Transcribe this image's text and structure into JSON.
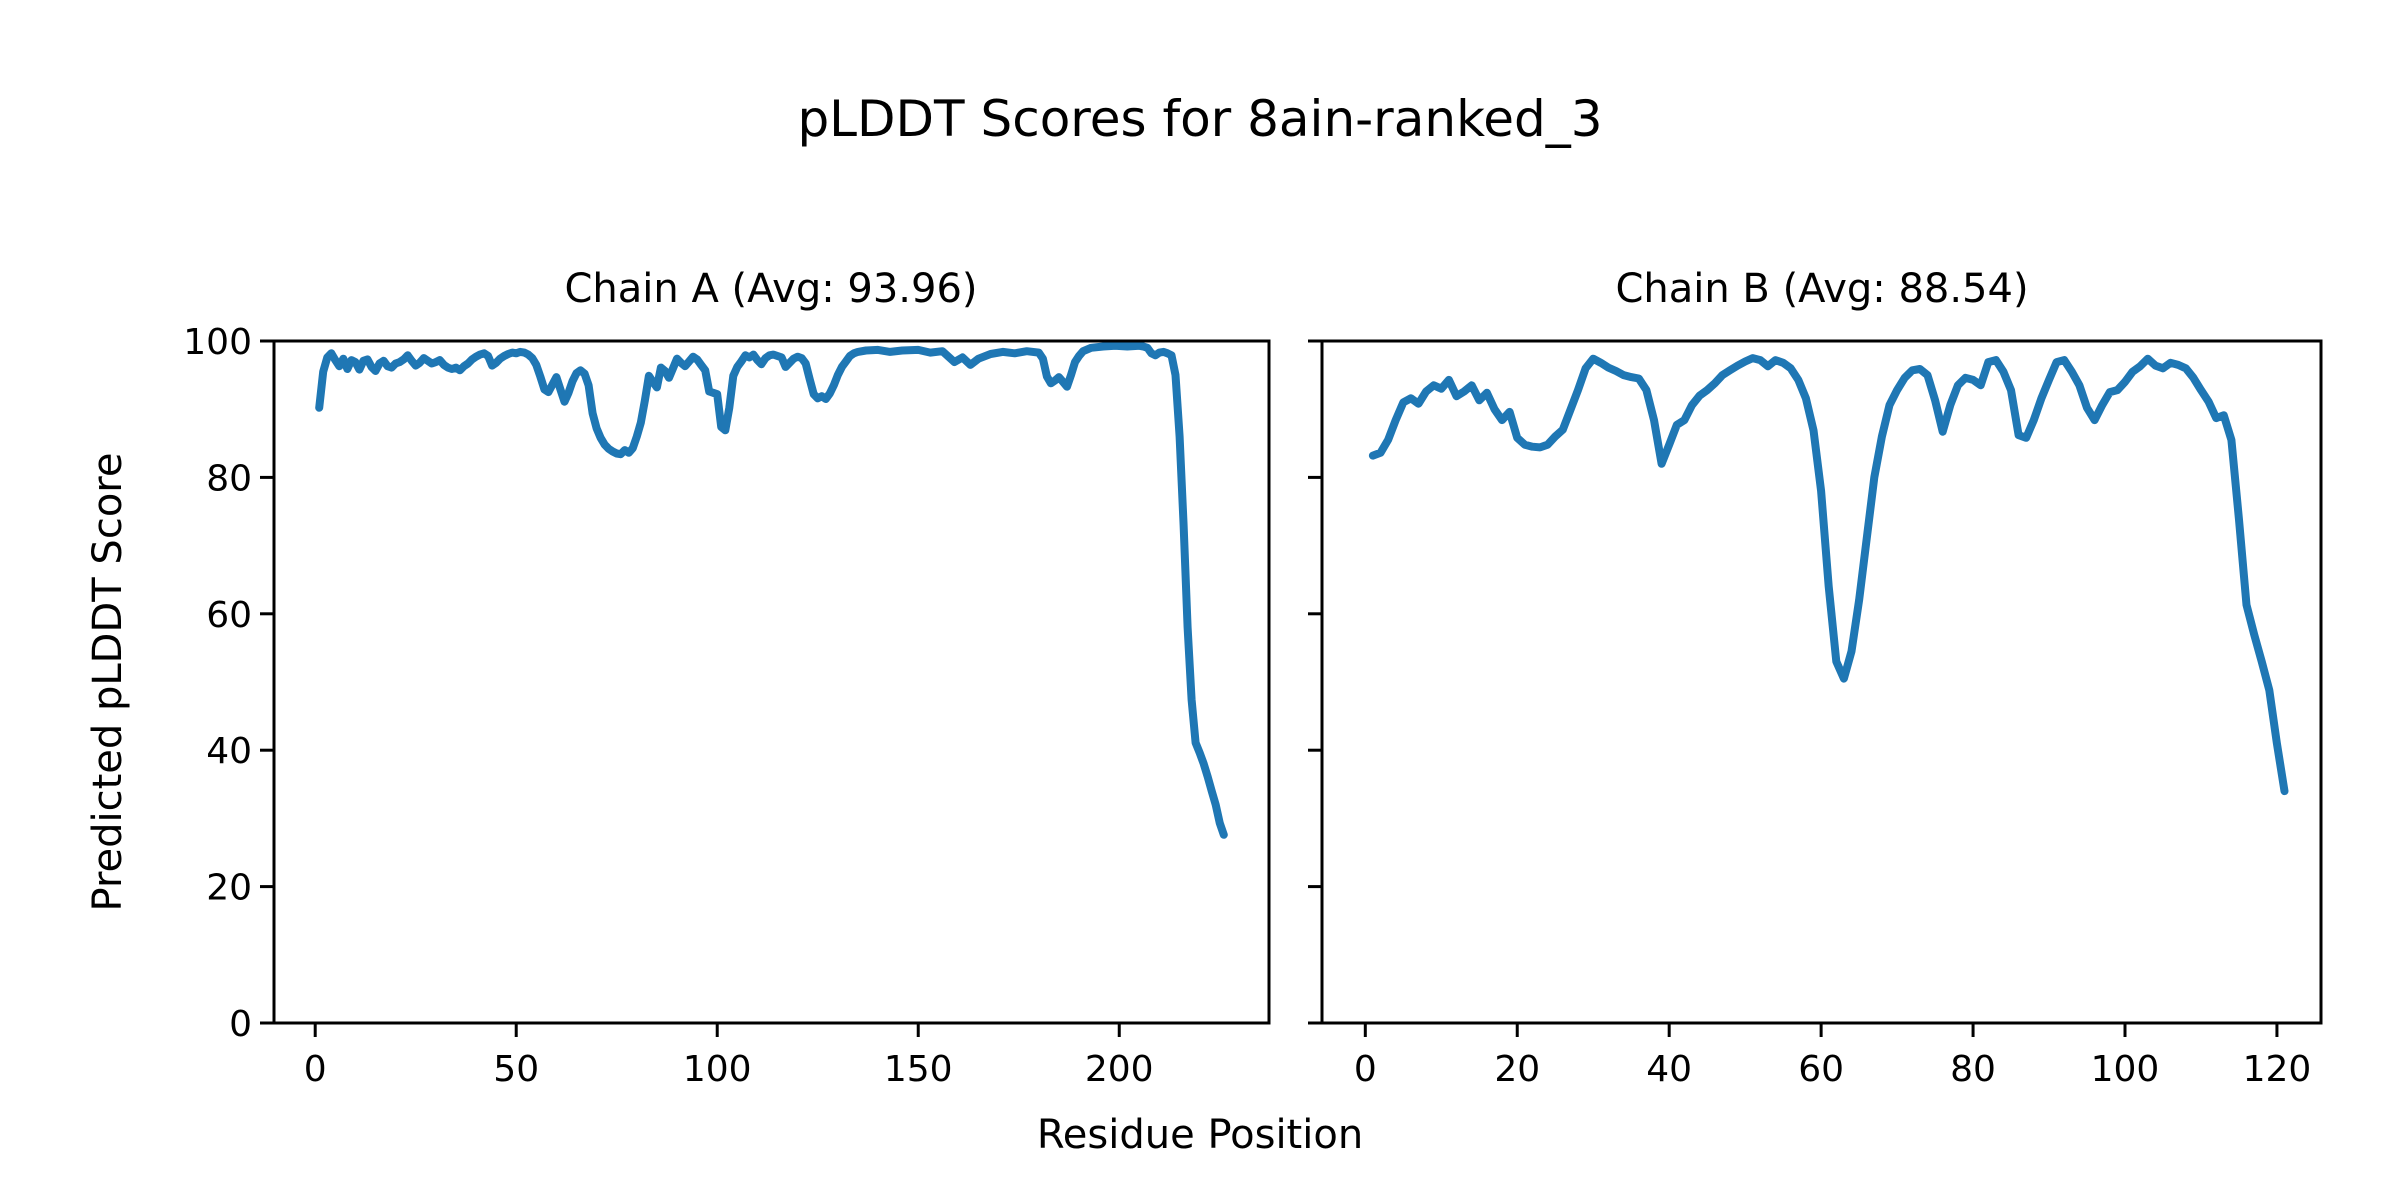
{
  "figure": {
    "suptitle": "pLDDT Scores for 8ain-ranked_3",
    "xlabel": "Residue Position",
    "ylabel": "Predicted pLDDT Score",
    "background_color": "#ffffff",
    "text_color": "#000000"
  },
  "chart_data": [
    {
      "type": "line",
      "title": "Chain A (Avg: 93.96)",
      "chain": "A",
      "avg_plddt": 93.96,
      "line_color": "#1f77b4",
      "xlim": [
        -10.25,
        237.25
      ],
      "ylim": [
        0,
        100
      ],
      "xticks": [
        0,
        50,
        100,
        150,
        200
      ],
      "yticks": [
        0,
        20,
        40,
        60,
        80,
        100
      ],
      "show_ytick_labels": true,
      "grid": false,
      "points": [
        [
          1,
          90.2
        ],
        [
          2,
          95.5
        ],
        [
          3,
          97.6
        ],
        [
          4,
          98.2
        ],
        [
          5,
          97.2
        ],
        [
          6,
          96.3
        ],
        [
          7,
          97.4
        ],
        [
          8,
          95.9
        ],
        [
          9,
          97.2
        ],
        [
          10,
          96.9
        ],
        [
          11,
          95.8
        ],
        [
          12,
          97.1
        ],
        [
          13,
          97.3
        ],
        [
          14,
          96.2
        ],
        [
          15,
          95.6
        ],
        [
          16,
          96.7
        ],
        [
          17,
          97.1
        ],
        [
          18,
          96.3
        ],
        [
          19,
          96.1
        ],
        [
          20,
          96.7
        ],
        [
          21,
          96.9
        ],
        [
          22,
          97.3
        ],
        [
          23,
          97.9
        ],
        [
          24,
          97.1
        ],
        [
          25,
          96.4
        ],
        [
          26,
          96.8
        ],
        [
          27,
          97.5
        ],
        [
          28,
          97.1
        ],
        [
          29,
          96.7
        ],
        [
          30,
          96.9
        ],
        [
          31,
          97.2
        ],
        [
          32,
          96.5
        ],
        [
          33,
          96.1
        ],
        [
          34,
          95.9
        ],
        [
          35,
          96.1
        ],
        [
          36,
          95.7
        ],
        [
          37,
          96.3
        ],
        [
          38,
          96.7
        ],
        [
          39,
          97.3
        ],
        [
          40,
          97.7
        ],
        [
          41,
          98.0
        ],
        [
          42,
          98.2
        ],
        [
          43,
          97.8
        ],
        [
          44,
          96.4
        ],
        [
          45,
          96.8
        ],
        [
          46,
          97.4
        ],
        [
          47,
          97.8
        ],
        [
          48,
          98.1
        ],
        [
          49,
          98.3
        ],
        [
          50,
          98.2
        ],
        [
          51,
          98.4
        ],
        [
          52,
          98.3
        ],
        [
          53,
          98.0
        ],
        [
          54,
          97.5
        ],
        [
          55,
          96.5
        ],
        [
          56,
          94.8
        ],
        [
          57,
          92.9
        ],
        [
          58,
          92.5
        ],
        [
          59,
          93.6
        ],
        [
          60,
          94.7
        ],
        [
          61,
          92.9
        ],
        [
          62,
          91.1
        ],
        [
          63,
          92.4
        ],
        [
          64,
          94.1
        ],
        [
          65,
          95.3
        ],
        [
          66,
          95.7
        ],
        [
          67,
          95.2
        ],
        [
          68,
          93.5
        ],
        [
          69,
          89.4
        ],
        [
          70,
          87.2
        ],
        [
          71,
          85.8
        ],
        [
          72,
          84.8
        ],
        [
          73,
          84.2
        ],
        [
          74,
          83.8
        ],
        [
          75,
          83.5
        ],
        [
          76,
          83.4
        ],
        [
          77,
          84.0
        ],
        [
          78,
          83.6
        ],
        [
          79,
          84.3
        ],
        [
          80,
          86.0
        ],
        [
          81,
          88.0
        ],
        [
          82,
          91.3
        ],
        [
          83,
          94.9
        ],
        [
          84,
          94.0
        ],
        [
          85,
          93.2
        ],
        [
          86,
          96.1
        ],
        [
          87,
          95.6
        ],
        [
          88,
          94.6
        ],
        [
          89,
          96.0
        ],
        [
          90,
          97.4
        ],
        [
          91,
          96.8
        ],
        [
          92,
          96.3
        ],
        [
          93,
          97.0
        ],
        [
          94,
          97.7
        ],
        [
          95,
          97.3
        ],
        [
          96,
          96.5
        ],
        [
          97,
          95.7
        ],
        [
          98,
          92.6
        ],
        [
          99,
          92.4
        ],
        [
          100,
          92.2
        ],
        [
          101,
          87.4
        ],
        [
          102,
          86.9
        ],
        [
          103,
          90.2
        ],
        [
          104,
          94.9
        ],
        [
          105,
          96.2
        ],
        [
          106,
          97.0
        ],
        [
          107,
          97.9
        ],
        [
          108,
          97.6
        ],
        [
          109,
          98.0
        ],
        [
          110,
          97.2
        ],
        [
          111,
          96.6
        ],
        [
          112,
          97.5
        ],
        [
          113,
          97.9
        ],
        [
          114,
          98.0
        ],
        [
          115,
          97.8
        ],
        [
          116,
          97.6
        ],
        [
          117,
          96.2
        ],
        [
          118,
          96.8
        ],
        [
          119,
          97.4
        ],
        [
          120,
          97.7
        ],
        [
          121,
          97.5
        ],
        [
          122,
          96.7
        ],
        [
          123,
          94.4
        ],
        [
          124,
          92.2
        ],
        [
          125,
          91.6
        ],
        [
          126,
          91.9
        ],
        [
          127,
          91.5
        ],
        [
          128,
          92.3
        ],
        [
          129,
          93.5
        ],
        [
          130,
          95.0
        ],
        [
          131,
          96.2
        ],
        [
          132,
          97.0
        ],
        [
          133,
          97.8
        ],
        [
          134,
          98.2
        ],
        [
          135,
          98.4
        ],
        [
          137,
          98.6
        ],
        [
          140,
          98.7
        ],
        [
          143,
          98.4
        ],
        [
          146,
          98.6
        ],
        [
          150,
          98.7
        ],
        [
          153,
          98.3
        ],
        [
          156,
          98.5
        ],
        [
          159,
          96.9
        ],
        [
          161,
          97.6
        ],
        [
          163,
          96.5
        ],
        [
          165,
          97.4
        ],
        [
          168,
          98.1
        ],
        [
          171,
          98.4
        ],
        [
          174,
          98.2
        ],
        [
          177,
          98.5
        ],
        [
          180,
          98.3
        ],
        [
          181,
          97.4
        ],
        [
          182,
          94.8
        ],
        [
          183,
          93.8
        ],
        [
          184,
          94.2
        ],
        [
          185,
          94.7
        ],
        [
          186,
          94.0
        ],
        [
          187,
          93.3
        ],
        [
          188,
          95.0
        ],
        [
          189,
          96.9
        ],
        [
          190,
          97.8
        ],
        [
          191,
          98.5
        ],
        [
          193,
          99.0
        ],
        [
          196,
          99.2
        ],
        [
          199,
          99.3
        ],
        [
          202,
          99.2
        ],
        [
          205,
          99.3
        ],
        [
          206,
          99.2
        ],
        [
          207,
          99.0
        ],
        [
          208,
          98.2
        ],
        [
          209,
          97.9
        ],
        [
          210,
          98.3
        ],
        [
          211,
          98.4
        ],
        [
          212,
          98.2
        ],
        [
          213,
          97.9
        ],
        [
          214,
          95.0
        ],
        [
          215,
          86.0
        ],
        [
          216,
          73.0
        ],
        [
          217,
          58.0
        ],
        [
          218,
          47.4
        ],
        [
          219,
          41.1
        ],
        [
          220,
          39.6
        ],
        [
          221,
          38.0
        ],
        [
          222,
          36.1
        ],
        [
          223,
          34.0
        ],
        [
          224,
          32.0
        ],
        [
          225,
          29.3
        ],
        [
          226,
          27.6
        ]
      ]
    },
    {
      "type": "line",
      "title": "Chain B (Avg: 88.54)",
      "chain": "B",
      "avg_plddt": 88.54,
      "line_color": "#1f77b4",
      "xlim": [
        -5.7,
        125.8
      ],
      "ylim": [
        0,
        100
      ],
      "xticks": [
        0,
        20,
        40,
        60,
        80,
        100,
        120
      ],
      "yticks": [
        0,
        20,
        40,
        60,
        80,
        100
      ],
      "show_ytick_labels": false,
      "grid": false,
      "points": [
        [
          1,
          83.2
        ],
        [
          2,
          83.6
        ],
        [
          3,
          85.5
        ],
        [
          4,
          88.4
        ],
        [
          5,
          91.0
        ],
        [
          6,
          91.6
        ],
        [
          7,
          90.8
        ],
        [
          8,
          92.6
        ],
        [
          9,
          93.5
        ],
        [
          10,
          93.0
        ],
        [
          11,
          94.3
        ],
        [
          12,
          91.9
        ],
        [
          13,
          92.6
        ],
        [
          14,
          93.5
        ],
        [
          15,
          91.3
        ],
        [
          16,
          92.4
        ],
        [
          17,
          90.0
        ],
        [
          18,
          88.4
        ],
        [
          19,
          89.6
        ],
        [
          20,
          85.8
        ],
        [
          21,
          84.8
        ],
        [
          22,
          84.5
        ],
        [
          23,
          84.4
        ],
        [
          24,
          84.8
        ],
        [
          25,
          86.0
        ],
        [
          26,
          87.0
        ],
        [
          27,
          89.9
        ],
        [
          28,
          92.8
        ],
        [
          29,
          96.0
        ],
        [
          30,
          97.4
        ],
        [
          31,
          96.8
        ],
        [
          32,
          96.1
        ],
        [
          33,
          95.6
        ],
        [
          34,
          95.0
        ],
        [
          35,
          94.7
        ],
        [
          36,
          94.5
        ],
        [
          37,
          92.8
        ],
        [
          38,
          88.4
        ],
        [
          39,
          82.0
        ],
        [
          40,
          84.8
        ],
        [
          41,
          87.7
        ],
        [
          42,
          88.4
        ],
        [
          43,
          90.6
        ],
        [
          44,
          92.0
        ],
        [
          45,
          92.8
        ],
        [
          46,
          93.8
        ],
        [
          47,
          95.0
        ],
        [
          48,
          95.7
        ],
        [
          49,
          96.4
        ],
        [
          50,
          97.0
        ],
        [
          51,
          97.5
        ],
        [
          52,
          97.2
        ],
        [
          53,
          96.3
        ],
        [
          54,
          97.2
        ],
        [
          55,
          96.8
        ],
        [
          56,
          96.0
        ],
        [
          57,
          94.3
        ],
        [
          58,
          91.6
        ],
        [
          59,
          86.9
        ],
        [
          60,
          78.0
        ],
        [
          61,
          64.0
        ],
        [
          62,
          53.0
        ],
        [
          63,
          50.5
        ],
        [
          64,
          54.5
        ],
        [
          65,
          62.0
        ],
        [
          66,
          71.0
        ],
        [
          67,
          80.0
        ],
        [
          68,
          86.0
        ],
        [
          69,
          90.6
        ],
        [
          70,
          92.8
        ],
        [
          71,
          94.6
        ],
        [
          72,
          95.7
        ],
        [
          73,
          95.9
        ],
        [
          74,
          95.0
        ],
        [
          75,
          91.3
        ],
        [
          76,
          86.7
        ],
        [
          77,
          90.6
        ],
        [
          78,
          93.5
        ],
        [
          79,
          94.6
        ],
        [
          80,
          94.3
        ],
        [
          81,
          93.5
        ],
        [
          82,
          96.9
        ],
        [
          83,
          97.2
        ],
        [
          84,
          95.5
        ],
        [
          85,
          92.8
        ],
        [
          86,
          86.2
        ],
        [
          87,
          85.8
        ],
        [
          88,
          88.4
        ],
        [
          89,
          91.6
        ],
        [
          90,
          94.3
        ],
        [
          91,
          96.9
        ],
        [
          92,
          97.2
        ],
        [
          93,
          95.5
        ],
        [
          94,
          93.5
        ],
        [
          95,
          90.2
        ],
        [
          96,
          88.4
        ],
        [
          97,
          90.6
        ],
        [
          98,
          92.5
        ],
        [
          99,
          92.8
        ],
        [
          100,
          94.0
        ],
        [
          101,
          95.5
        ],
        [
          102,
          96.3
        ],
        [
          103,
          97.4
        ],
        [
          104,
          96.4
        ],
        [
          105,
          96.0
        ],
        [
          106,
          96.8
        ],
        [
          107,
          96.5
        ],
        [
          108,
          96.0
        ],
        [
          109,
          94.6
        ],
        [
          110,
          92.8
        ],
        [
          111,
          91.1
        ],
        [
          112,
          88.7
        ],
        [
          113,
          89.1
        ],
        [
          114,
          85.5
        ],
        [
          115,
          73.8
        ],
        [
          116,
          61.3
        ],
        [
          117,
          57.0
        ],
        [
          118,
          53.0
        ],
        [
          119,
          48.8
        ],
        [
          120,
          41.0
        ],
        [
          121,
          34.0
        ]
      ]
    }
  ]
}
